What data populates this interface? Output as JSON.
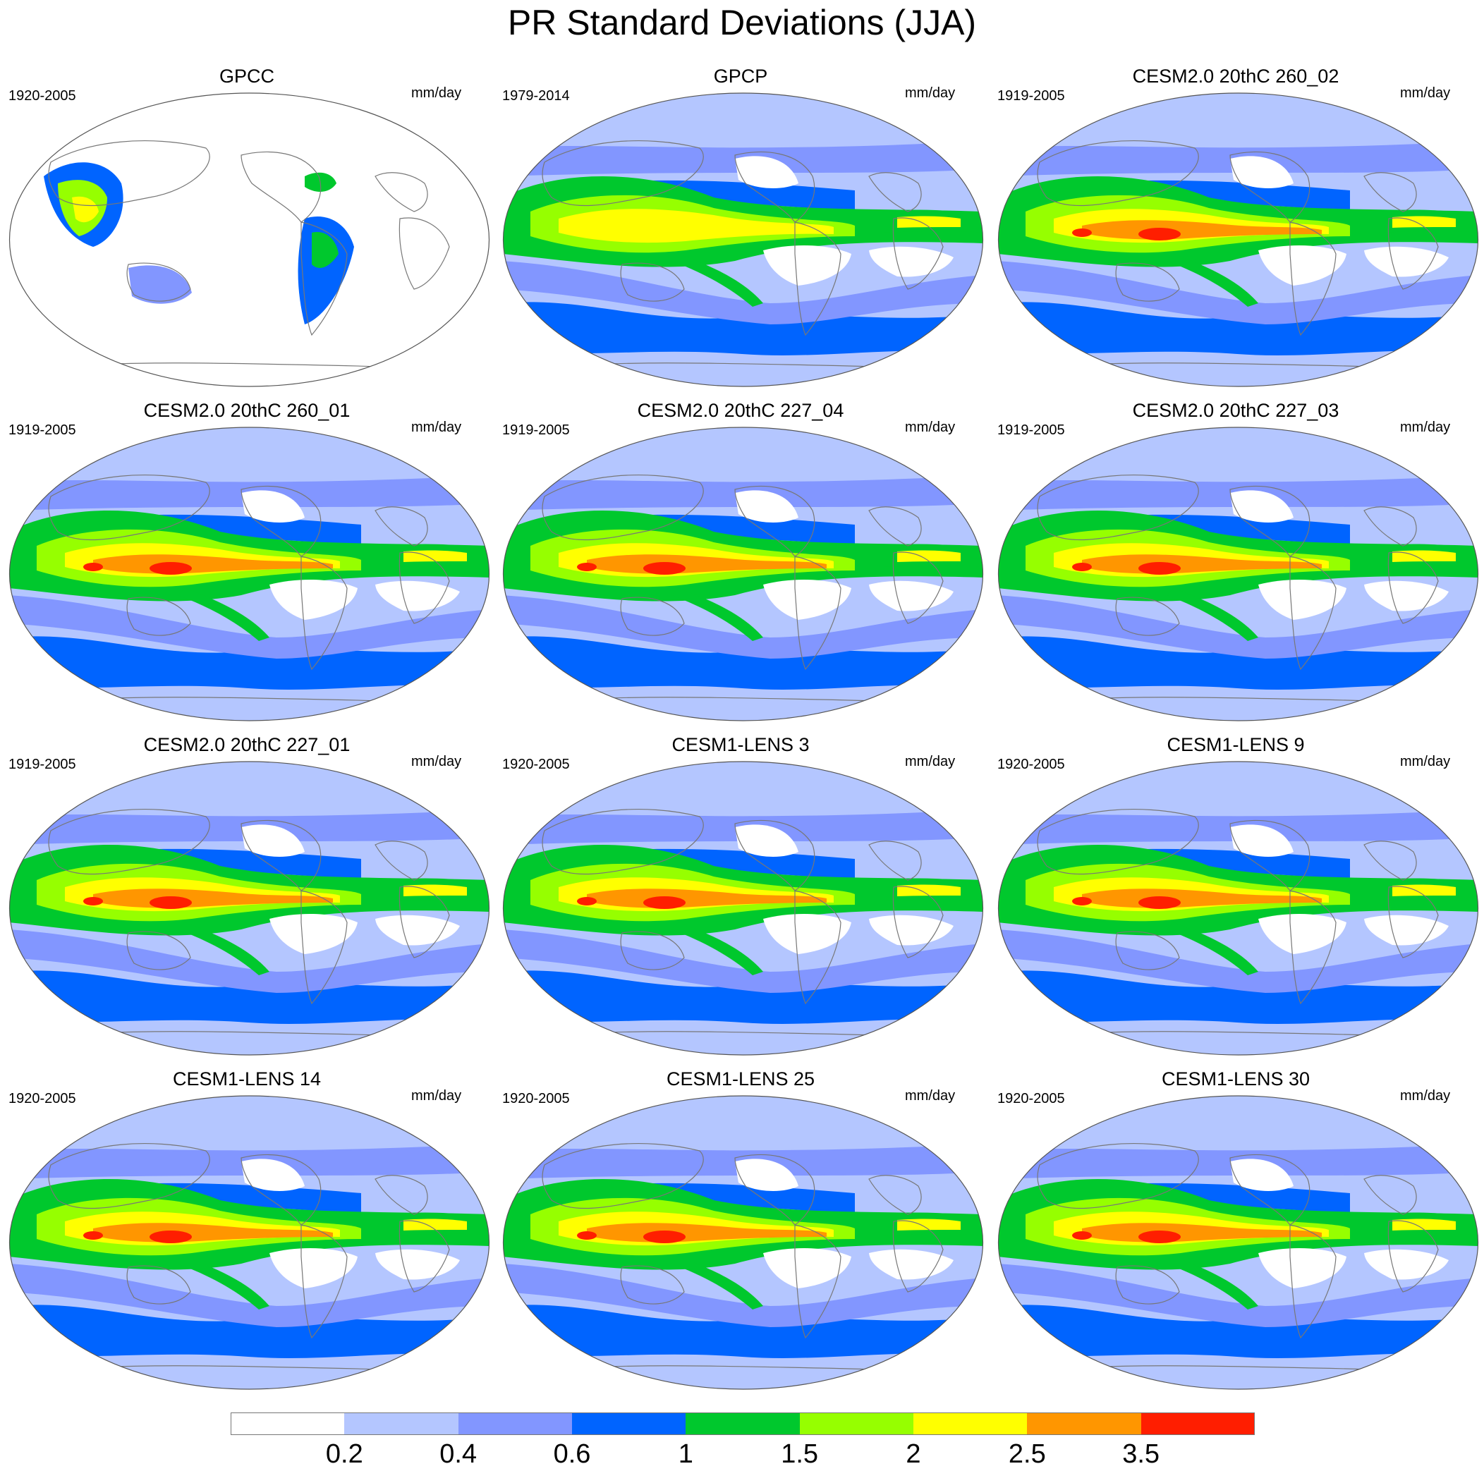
{
  "title": "PR Standard Deviations (JJA)",
  "colors": [
    "#ffffff",
    "#b4c6ff",
    "#8296ff",
    "#0064ff",
    "#00c82d",
    "#96ff00",
    "#ffff00",
    "#ff9600",
    "#ff1e00"
  ],
  "land_color": "#ffffff",
  "coast_color": "#777777",
  "colorbar": {
    "labels": [
      "0.2",
      "0.4",
      "0.6",
      "1",
      "1.5",
      "2",
      "2.5",
      "3.5"
    ]
  },
  "panels": [
    {
      "title": "GPCC",
      "years": "1920-2005",
      "units": "mm/day"
    },
    {
      "title": "GPCP",
      "years": "1979-2014",
      "units": "mm/day"
    },
    {
      "title": "CESM2.0 20thC 260_02",
      "years": "1919-2005",
      "units": "mm/day"
    },
    {
      "title": "CESM2.0 20thC 260_01",
      "years": "1919-2005",
      "units": "mm/day"
    },
    {
      "title": "CESM2.0 20thC 227_04",
      "years": "1919-2005",
      "units": "mm/day"
    },
    {
      "title": "CESM2.0 20thC 227_03",
      "years": "1919-2005",
      "units": "mm/day"
    },
    {
      "title": "CESM2.0 20thC 227_01",
      "years": "1919-2005",
      "units": "mm/day"
    },
    {
      "title": "CESM1-LENS 3",
      "years": "1920-2005",
      "units": "mm/day"
    },
    {
      "title": "CESM1-LENS 9",
      "years": "1920-2005",
      "units": "mm/day"
    },
    {
      "title": "CESM1-LENS 14",
      "years": "1920-2005",
      "units": "mm/day"
    },
    {
      "title": "CESM1-LENS 25",
      "years": "1920-2005",
      "units": "mm/day"
    },
    {
      "title": "CESM1-LENS 30",
      "years": "1920-2005",
      "units": "mm/day"
    }
  ]
}
